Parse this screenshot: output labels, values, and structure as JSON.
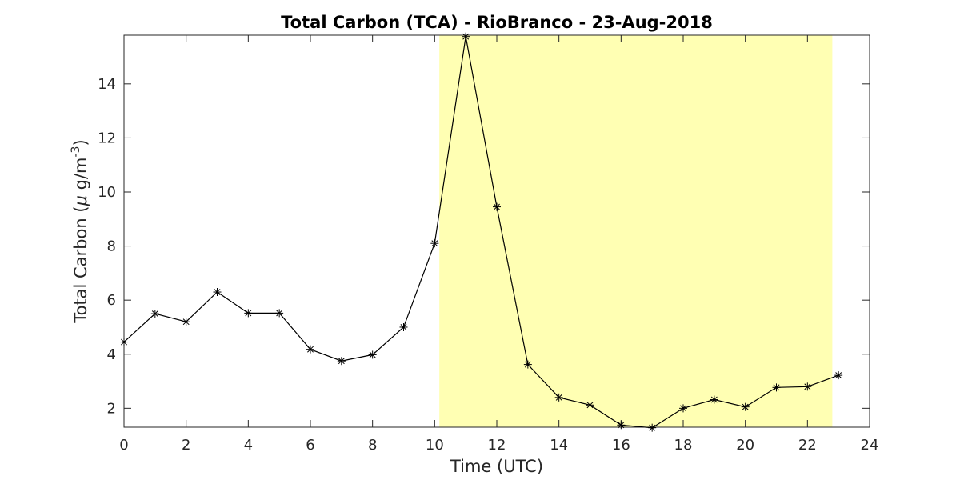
{
  "chart_data": {
    "type": "line",
    "title": "Total Carbon (TCA) - RioBranco - 23-Aug-2018",
    "xlabel": "Time (UTC)",
    "ylabel": {
      "prefix": "Total Carbon (",
      "mu": "μ",
      "unit": " g/m",
      "exponent": "-3",
      "suffix": ")"
    },
    "xlim": [
      0,
      24
    ],
    "ylim": [
      1.3,
      15.8
    ],
    "xticks": [
      "0",
      "2",
      "4",
      "6",
      "8",
      "10",
      "12",
      "14",
      "16",
      "18",
      "20",
      "22",
      "24"
    ],
    "yticks": [
      "2",
      "4",
      "6",
      "8",
      "10",
      "12",
      "14"
    ],
    "highlight": {
      "x_start": 10.15,
      "x_end": 22.8,
      "color": "#ffffb3"
    },
    "series": [
      {
        "marker": "asterisk",
        "color": "#000000",
        "x": [
          0,
          1,
          2,
          3,
          4,
          5,
          6,
          7,
          8,
          9,
          10,
          11,
          12,
          13,
          14,
          15,
          16,
          17,
          18,
          19,
          20,
          21,
          22,
          23
        ],
        "y": [
          4.45,
          5.5,
          5.2,
          6.3,
          5.52,
          5.52,
          4.18,
          3.75,
          3.98,
          5.0,
          8.1,
          15.75,
          9.45,
          3.62,
          2.4,
          2.12,
          1.38,
          1.28,
          2.0,
          2.32,
          2.05,
          2.77,
          2.8,
          3.22
        ]
      }
    ],
    "grid": false,
    "legend": false
  }
}
